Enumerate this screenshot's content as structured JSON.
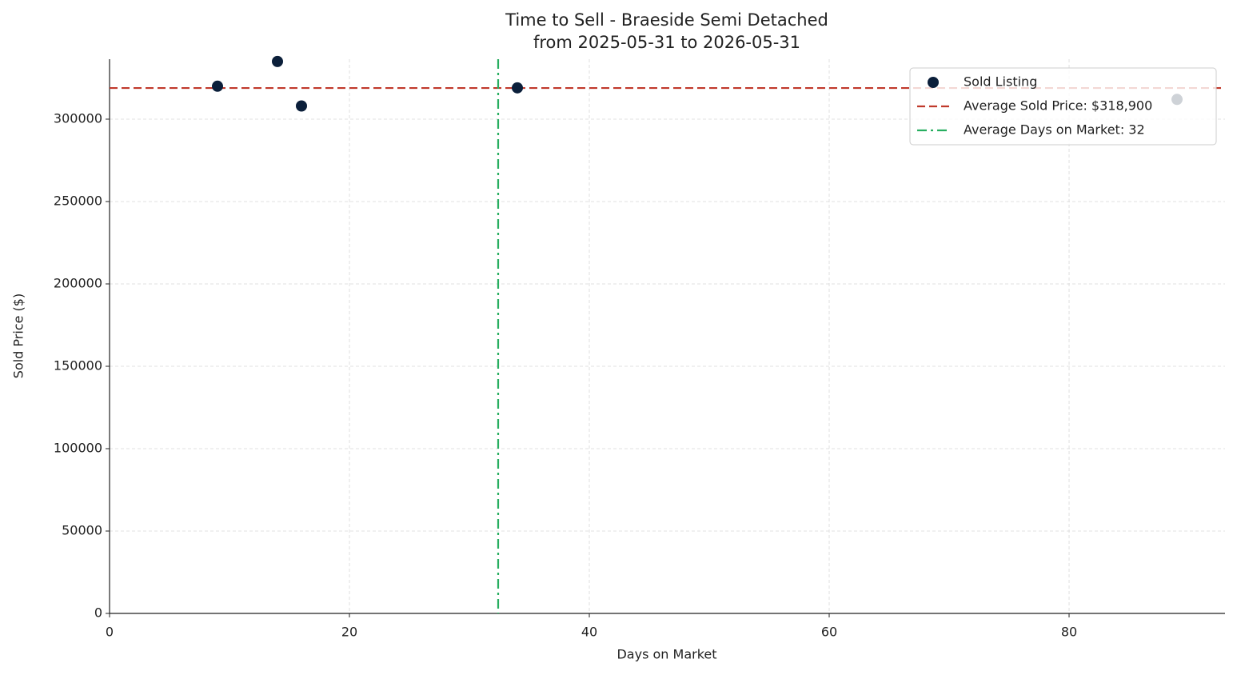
{
  "chart_data": {
    "type": "scatter",
    "title": "Time to Sell - Braeside Semi Detached",
    "subtitle": "from 2025-05-31 to 2026-05-31",
    "x_label": "Days on Market",
    "y_label": "Sold Price ($)",
    "series": [
      {
        "name": "Sold Listing",
        "color": "#0b1f3a",
        "x": [
          9,
          14,
          16,
          34,
          89
        ],
        "values": [
          320000,
          335000,
          308000,
          319000,
          312000
        ]
      }
    ],
    "reference_lines": [
      {
        "name": "Average Sold Price: $318,900",
        "color": "#c0392b",
        "axis": "y",
        "value": 318900,
        "style": "dashed"
      },
      {
        "name": "Average Days on Market: 32",
        "color": "#27ae60",
        "axis": "x",
        "value": 32.4,
        "style": "dashdot"
      }
    ],
    "xlim": [
      0,
      93
    ],
    "ylim": [
      0,
      336400
    ],
    "xticks": [
      0,
      20,
      40,
      60,
      80
    ],
    "yticks": [
      0,
      50000,
      100000,
      150000,
      200000,
      250000,
      300000
    ],
    "grid": true,
    "legend": "upper right"
  }
}
